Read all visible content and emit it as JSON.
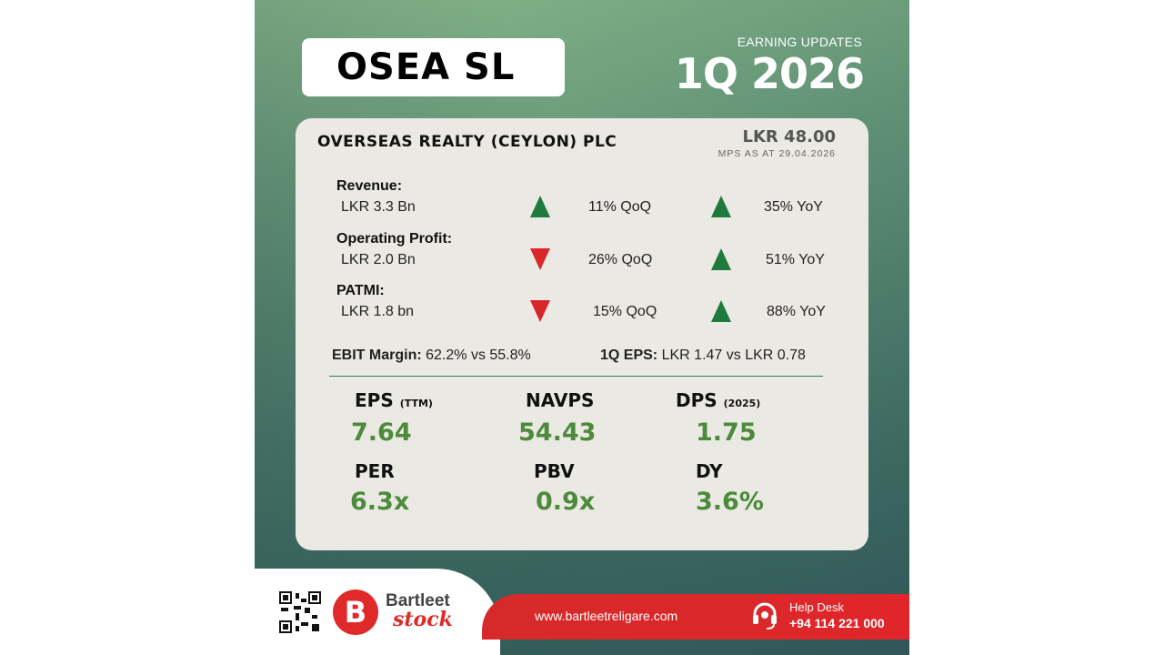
{
  "header": {
    "ticker": "OSEA SL",
    "subtitle": "EARNING UPDATES",
    "period": "1Q 2026"
  },
  "company": {
    "name": "OVERSEAS REALTY (CEYLON) PLC",
    "price": "LKR 48.00",
    "price_label": "MPS AS AT 29.04.2026"
  },
  "metrics_rows": [
    {
      "label": "Revenue:",
      "value": "LKR 3.3 Bn",
      "qoq": "11% QoQ",
      "qoq_dir": "up",
      "yoy": "35% YoY",
      "yoy_dir": "up"
    },
    {
      "label": "Operating Profit:",
      "value": "LKR 2.0 Bn",
      "qoq": "26% QoQ",
      "qoq_dir": "down",
      "yoy": "51% YoY",
      "yoy_dir": "up"
    },
    {
      "label": "PATMI:",
      "value": "LKR 1.8 bn",
      "qoq": "15% QoQ",
      "qoq_dir": "down",
      "yoy": "88% YoY",
      "yoy_dir": "up"
    }
  ],
  "summary": {
    "ebit_label": "EBIT Margin:",
    "ebit_value": "62.2% vs 55.8%",
    "eps_label": "1Q EPS:",
    "eps_value": "LKR 1.47 vs LKR 0.78"
  },
  "ratios": [
    {
      "label": "EPS",
      "note": "(TTM)",
      "value": "7.64"
    },
    {
      "label": "NAVPS",
      "note": "",
      "value": "54.43"
    },
    {
      "label": "DPS",
      "note": "(2025)",
      "value": "1.75"
    },
    {
      "label": "PER",
      "note": "",
      "value": "6.3x"
    },
    {
      "label": "PBV",
      "note": "",
      "value": "0.9x"
    },
    {
      "label": "DY",
      "note": "",
      "value": "3.6%"
    }
  ],
  "footer": {
    "brand_top": "Bartleet",
    "brand_bottom": "stock",
    "website": "www.bartleetreligare.com",
    "helpdesk_label": "Help Desk",
    "helpdesk_phone": "+94 114 221 000",
    "icons": [
      "qr-code-icon",
      "bartleet-logo-icon",
      "headset-icon"
    ]
  },
  "colors": {
    "up": "#1f7a3d",
    "down": "#d8262b",
    "value_green": "#4b8b3b",
    "brand_red": "#e02a2a"
  }
}
